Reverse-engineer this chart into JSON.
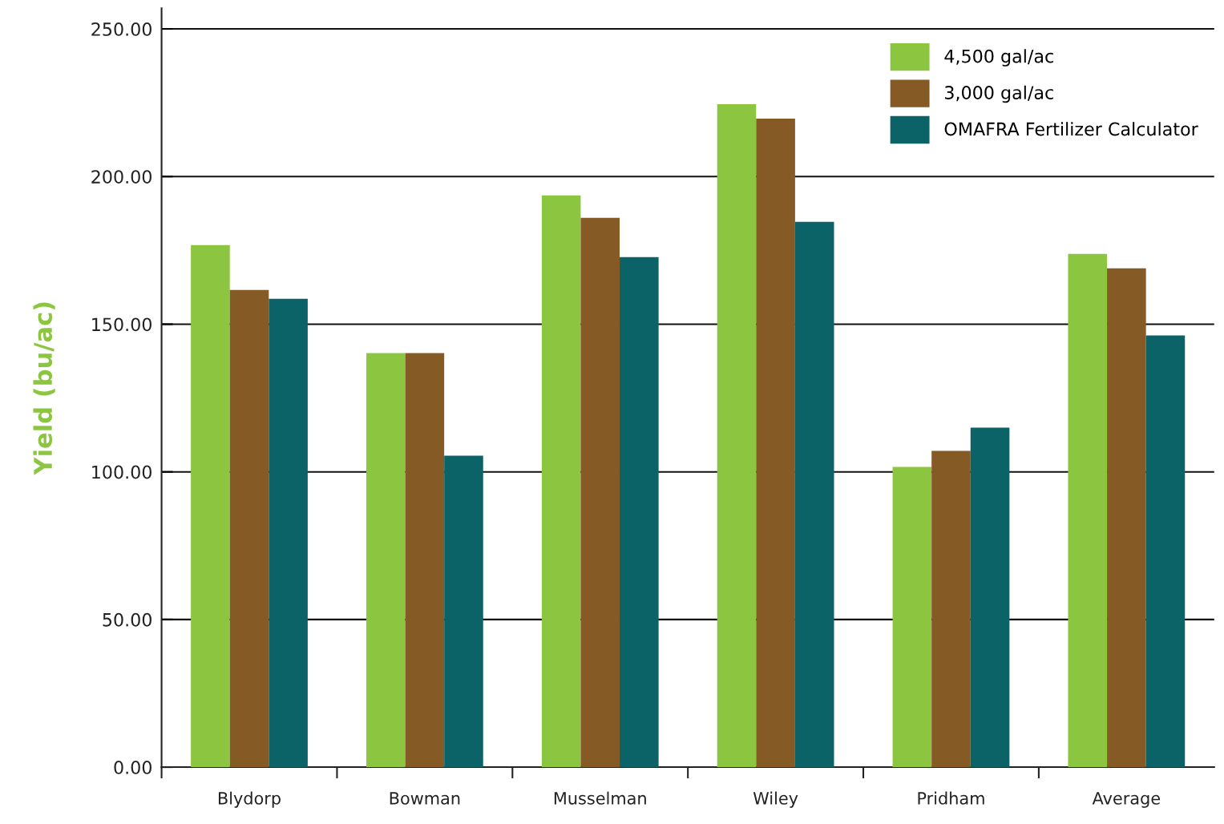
{
  "chart_data": {
    "type": "bar",
    "ylabel": "Yield (bu/ac)",
    "categories": [
      "Blydorp",
      "Bowman",
      "Musselman",
      "Wiley",
      "Pridham",
      "Average"
    ],
    "series": [
      {
        "name": "4,500 gal/ac",
        "color": "#8cc540",
        "values": [
          176.8,
          140.2,
          193.6,
          224.5,
          101.7,
          173.8
        ]
      },
      {
        "name": "3,000 gal/ac",
        "color": "#855a25",
        "values": [
          161.6,
          140.2,
          186.0,
          219.6,
          107.1,
          168.9
        ]
      },
      {
        "name": "OMAFRA Fertilizer Calculator",
        "color": "#0b6368",
        "values": [
          158.6,
          105.5,
          172.7,
          184.7,
          115.0,
          146.2
        ]
      }
    ],
    "ylim": [
      0,
      257
    ],
    "yticks": [
      {
        "value": 0,
        "label": "0.00"
      },
      {
        "value": 50,
        "label": "50.00"
      },
      {
        "value": 100,
        "label": "100.00"
      },
      {
        "value": 150,
        "label": "150.00"
      },
      {
        "value": 200,
        "label": "200.00"
      },
      {
        "value": 250,
        "label": "250.00"
      }
    ],
    "grid": "y",
    "legend": "top right"
  }
}
